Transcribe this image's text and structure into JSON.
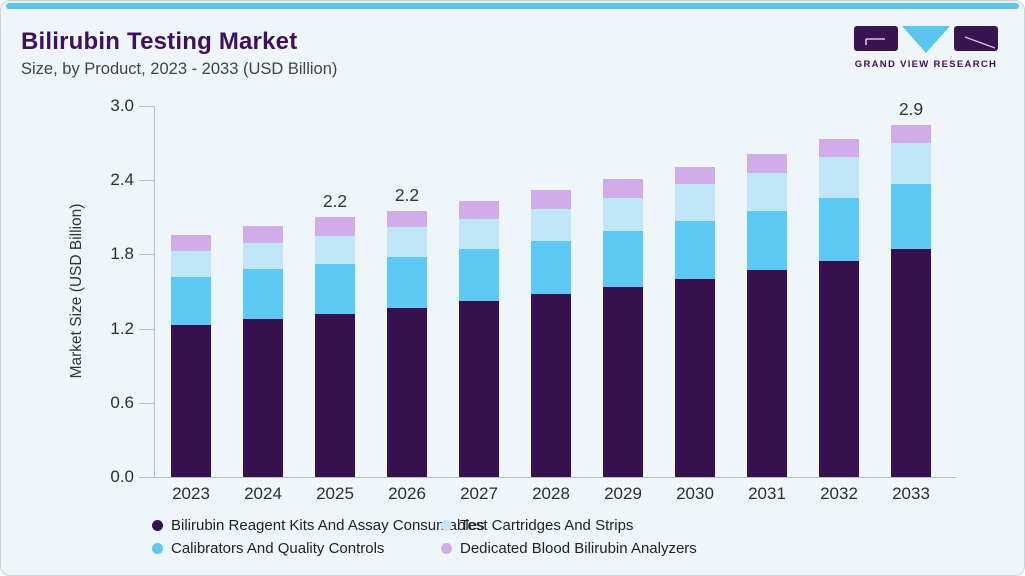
{
  "header": {
    "title": "Bilirubin Testing Market",
    "subtitle": "Size, by Product, 2023 - 2033 (USD Billion)",
    "logo_text": "GRAND VIEW RESEARCH"
  },
  "colors": {
    "accent_strip": "#5bc4ef",
    "title_text": "#401060",
    "logo_purple": "#3a1452",
    "logo_triangle": "#5bc4ef",
    "card_background": "#eff6fa",
    "axis_gray": "#b8c0c6"
  },
  "chart_data": {
    "type": "bar",
    "stacked": true,
    "title": "Bilirubin Testing Market Size, by Product, 2023 - 2033 (USD Billion)",
    "xlabel": "",
    "ylabel": "Market Size (USD Billion)",
    "ylim": [
      0,
      3.0
    ],
    "yticks": [
      "0.0",
      "0.6",
      "1.2",
      "1.8",
      "2.4",
      "3.0"
    ],
    "grid": false,
    "legend_position": "bottom",
    "categories": [
      "2023",
      "2024",
      "2025",
      "2026",
      "2027",
      "2028",
      "2029",
      "2030",
      "2031",
      "2032",
      "2033"
    ],
    "series": [
      {
        "name": "Bilirubin Reagent Kits And Assay Consumables",
        "color": "#37114e",
        "values": [
          1.23,
          1.28,
          1.32,
          1.37,
          1.42,
          1.48,
          1.54,
          1.6,
          1.67,
          1.75,
          1.84
        ]
      },
      {
        "name": "Calibrators And Quality Controls",
        "color": "#5ccaf5",
        "values": [
          0.39,
          0.4,
          0.4,
          0.41,
          0.42,
          0.43,
          0.45,
          0.47,
          0.48,
          0.51,
          0.53
        ]
      },
      {
        "name": "Test Cartridges And Strips",
        "color": "#c0e7f8",
        "values": [
          0.21,
          0.21,
          0.23,
          0.24,
          0.25,
          0.26,
          0.27,
          0.3,
          0.31,
          0.33,
          0.33
        ]
      },
      {
        "name": "Dedicated Blood Bilirubin Analyzers",
        "color": "#d2abea",
        "values": [
          0.13,
          0.14,
          0.15,
          0.13,
          0.14,
          0.15,
          0.15,
          0.14,
          0.15,
          0.14,
          0.15
        ]
      }
    ],
    "bar_total_labels": {
      "2025": "2.2",
      "2026": "2.2",
      "2033": "2.9"
    }
  },
  "legend": {
    "items": [
      {
        "label": "Bilirubin Reagent Kits And Assay Consumables",
        "color": "#37114e"
      },
      {
        "label": "Test Cartridges And Strips",
        "color": "#c0e7f8"
      },
      {
        "label": "Calibrators And Quality Controls",
        "color": "#5ccaf5"
      },
      {
        "label": "Dedicated Blood Bilirubin Analyzers",
        "color": "#d2abea"
      }
    ]
  }
}
